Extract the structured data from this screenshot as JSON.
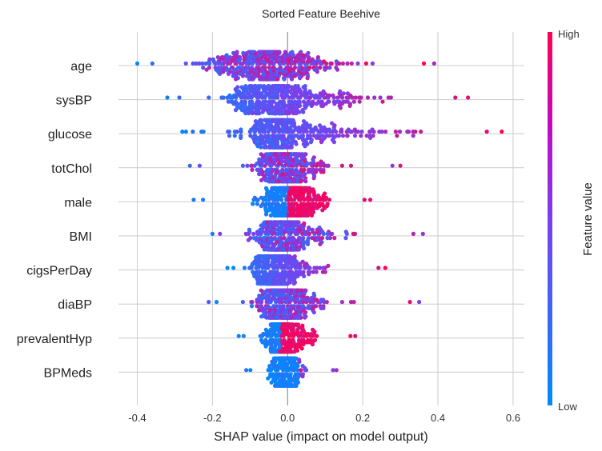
{
  "chart_data": {
    "type": "scatter",
    "subtype": "shap-beeswarm",
    "title": "Sorted Feature Beehive",
    "xlabel": "SHAP value (impact on model output)",
    "xlim": [
      -0.45,
      0.63
    ],
    "xticks": [
      "-0.4",
      "-0.2",
      "0.0",
      "0.2",
      "0.4",
      "0.6"
    ],
    "xtick_values": [
      -0.4,
      -0.2,
      0.0,
      0.2,
      0.4,
      0.6
    ],
    "grid": true,
    "colorbar": {
      "label": "Feature value",
      "high": "High",
      "low": "Low",
      "low_color": "#008bfb",
      "high_color": "#ff0052"
    },
    "features": [
      {
        "name": "age",
        "min": -0.4,
        "max": 0.39,
        "center": -0.08,
        "width": 0.12,
        "right_skew": 0.2,
        "color_mode": "mixed"
      },
      {
        "name": "sysBP",
        "min": -0.32,
        "max": 0.48,
        "center": -0.05,
        "width": 0.1,
        "right_skew": 0.22,
        "color_mode": "graded"
      },
      {
        "name": "glucose",
        "min": -0.28,
        "max": 0.57,
        "center": -0.03,
        "width": 0.05,
        "right_skew": 0.26,
        "color_mode": "graded"
      },
      {
        "name": "totChol",
        "min": -0.26,
        "max": 0.3,
        "center": -0.02,
        "width": 0.05,
        "right_skew": 0.12,
        "color_mode": "mixed"
      },
      {
        "name": "male",
        "min": -0.25,
        "max": 0.22,
        "center": 0.0,
        "width": 0.07,
        "right_skew": 0.08,
        "color_mode": "split"
      },
      {
        "name": "BMI",
        "min": -0.2,
        "max": 0.36,
        "center": -0.02,
        "width": 0.05,
        "right_skew": 0.14,
        "color_mode": "mixed"
      },
      {
        "name": "cigsPerDay",
        "min": -0.16,
        "max": 0.26,
        "center": -0.04,
        "width": 0.04,
        "right_skew": 0.1,
        "color_mode": "graded"
      },
      {
        "name": "diaBP",
        "min": -0.21,
        "max": 0.35,
        "center": -0.02,
        "width": 0.05,
        "right_skew": 0.12,
        "color_mode": "mixed"
      },
      {
        "name": "prevalentHyp",
        "min": -0.13,
        "max": 0.18,
        "center": -0.02,
        "width": 0.03,
        "right_skew": 0.07,
        "color_mode": "split"
      },
      {
        "name": "BPMeds",
        "min": -0.11,
        "max": 0.13,
        "center": -0.01,
        "width": 0.03,
        "right_skew": 0.04,
        "color_mode": "low"
      }
    ]
  }
}
